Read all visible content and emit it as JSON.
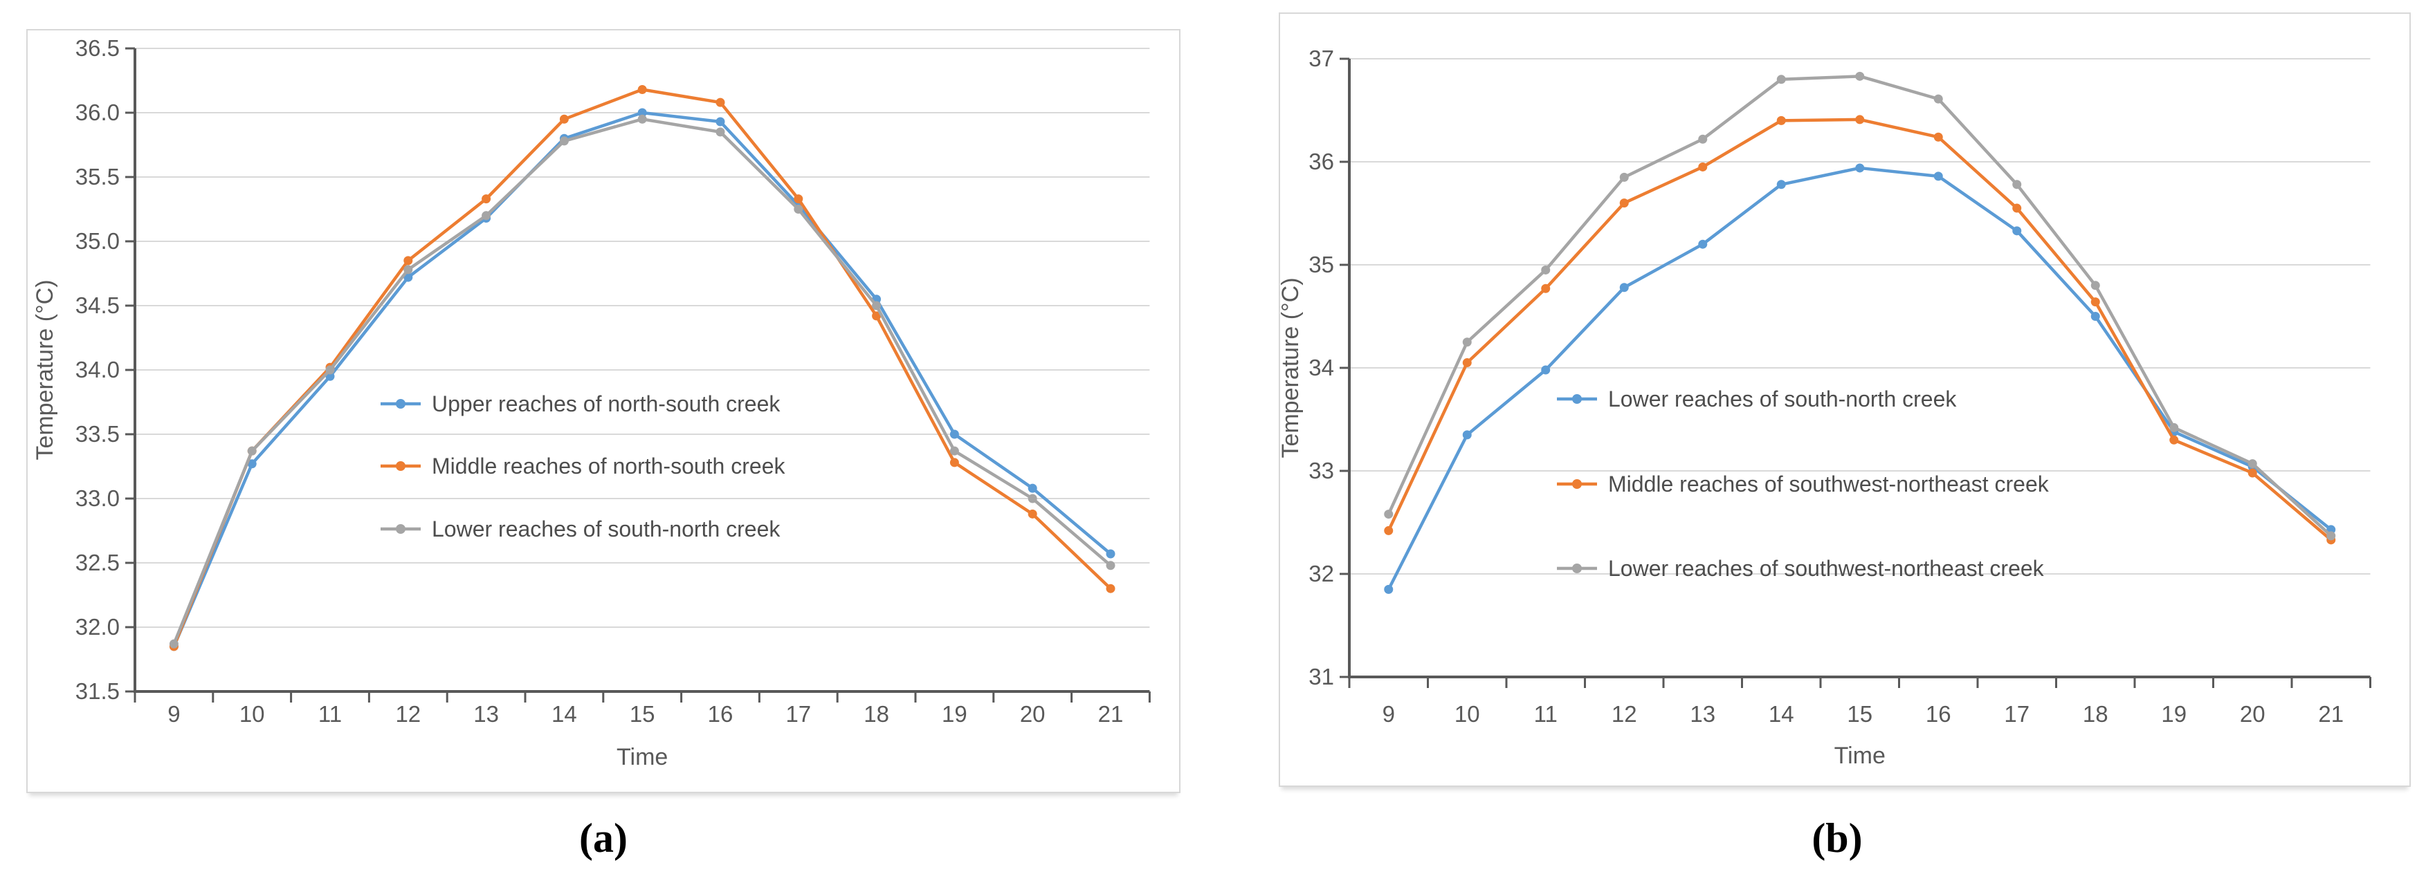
{
  "page": {
    "background": "#ffffff"
  },
  "styles": {
    "grid_color": "#d9d9d9",
    "axis_color": "#595959",
    "tick_text_color": "#595959",
    "caption_color": "#000000",
    "series_blue": "#5b9bd5",
    "series_orange": "#ed7d31",
    "series_gray": "#a5a5a5"
  },
  "chart_data": [
    {
      "type": "line",
      "caption": "(a)",
      "xlabel": "Time",
      "ylabel": "Temperature (°C)",
      "x": [
        9,
        10,
        11,
        12,
        13,
        14,
        15,
        16,
        17,
        18,
        19,
        20,
        21
      ],
      "x_tick_labels": [
        "9",
        "10",
        "11",
        "12",
        "13",
        "14",
        "15",
        "16",
        "17",
        "18",
        "19",
        "20",
        "21"
      ],
      "ylim": [
        31.5,
        36.5
      ],
      "y_step": 0.5,
      "y_tick_labels": [
        "36.5",
        "36.0",
        "35.5",
        "35.0",
        "34.5",
        "34.0",
        "33.5",
        "33.0",
        "32.5",
        "32.0",
        "31.5"
      ],
      "grid": "horizontal",
      "legend_position": "inside-center-right",
      "series": [
        {
          "name": "Upper reaches of north-south creek",
          "color": "#5b9bd5",
          "values": [
            31.85,
            33.27,
            33.95,
            34.72,
            35.18,
            35.8,
            36.0,
            35.93,
            35.28,
            34.55,
            33.5,
            33.08,
            32.57
          ]
        },
        {
          "name": "Middle reaches of north-south creek",
          "color": "#ed7d31",
          "values": [
            31.85,
            33.37,
            34.02,
            34.85,
            35.33,
            35.95,
            36.18,
            36.08,
            35.33,
            34.42,
            33.28,
            32.88,
            32.3
          ]
        },
        {
          "name": "Lower reaches of south-north creek",
          "color": "#a5a5a5",
          "values": [
            31.87,
            33.37,
            34.0,
            34.78,
            35.2,
            35.78,
            35.95,
            35.85,
            35.25,
            34.5,
            33.37,
            33.0,
            32.48
          ]
        }
      ]
    },
    {
      "type": "line",
      "caption": "(b)",
      "xlabel": "Time",
      "ylabel": "Temperature (°C)",
      "x": [
        9,
        10,
        11,
        12,
        13,
        14,
        15,
        16,
        17,
        18,
        19,
        20,
        21
      ],
      "x_tick_labels": [
        "9",
        "10",
        "11",
        "12",
        "13",
        "14",
        "15",
        "16",
        "17",
        "18",
        "19",
        "20",
        "21"
      ],
      "ylim": [
        31,
        37
      ],
      "y_step": 1,
      "y_tick_labels": [
        "37",
        "36",
        "35",
        "34",
        "33",
        "32",
        "31"
      ],
      "grid": "horizontal",
      "legend_position": "inside-center-right",
      "series": [
        {
          "name": "Lower reaches of south-north creek",
          "color": "#5b9bd5",
          "values": [
            31.85,
            33.35,
            33.98,
            34.78,
            35.2,
            35.78,
            35.94,
            35.86,
            35.33,
            34.5,
            33.38,
            33.04,
            32.43
          ]
        },
        {
          "name": "Middle reaches of southwest-northeast creek",
          "color": "#ed7d31",
          "values": [
            32.42,
            34.05,
            34.77,
            35.6,
            35.95,
            36.4,
            36.41,
            36.24,
            35.55,
            34.64,
            33.3,
            32.98,
            32.33
          ]
        },
        {
          "name": "Lower reaches of southwest-northeast creek",
          "color": "#a5a5a5",
          "values": [
            32.58,
            34.25,
            34.95,
            35.85,
            36.22,
            36.8,
            36.83,
            36.61,
            35.78,
            34.8,
            33.42,
            33.07,
            32.37
          ]
        }
      ]
    }
  ]
}
